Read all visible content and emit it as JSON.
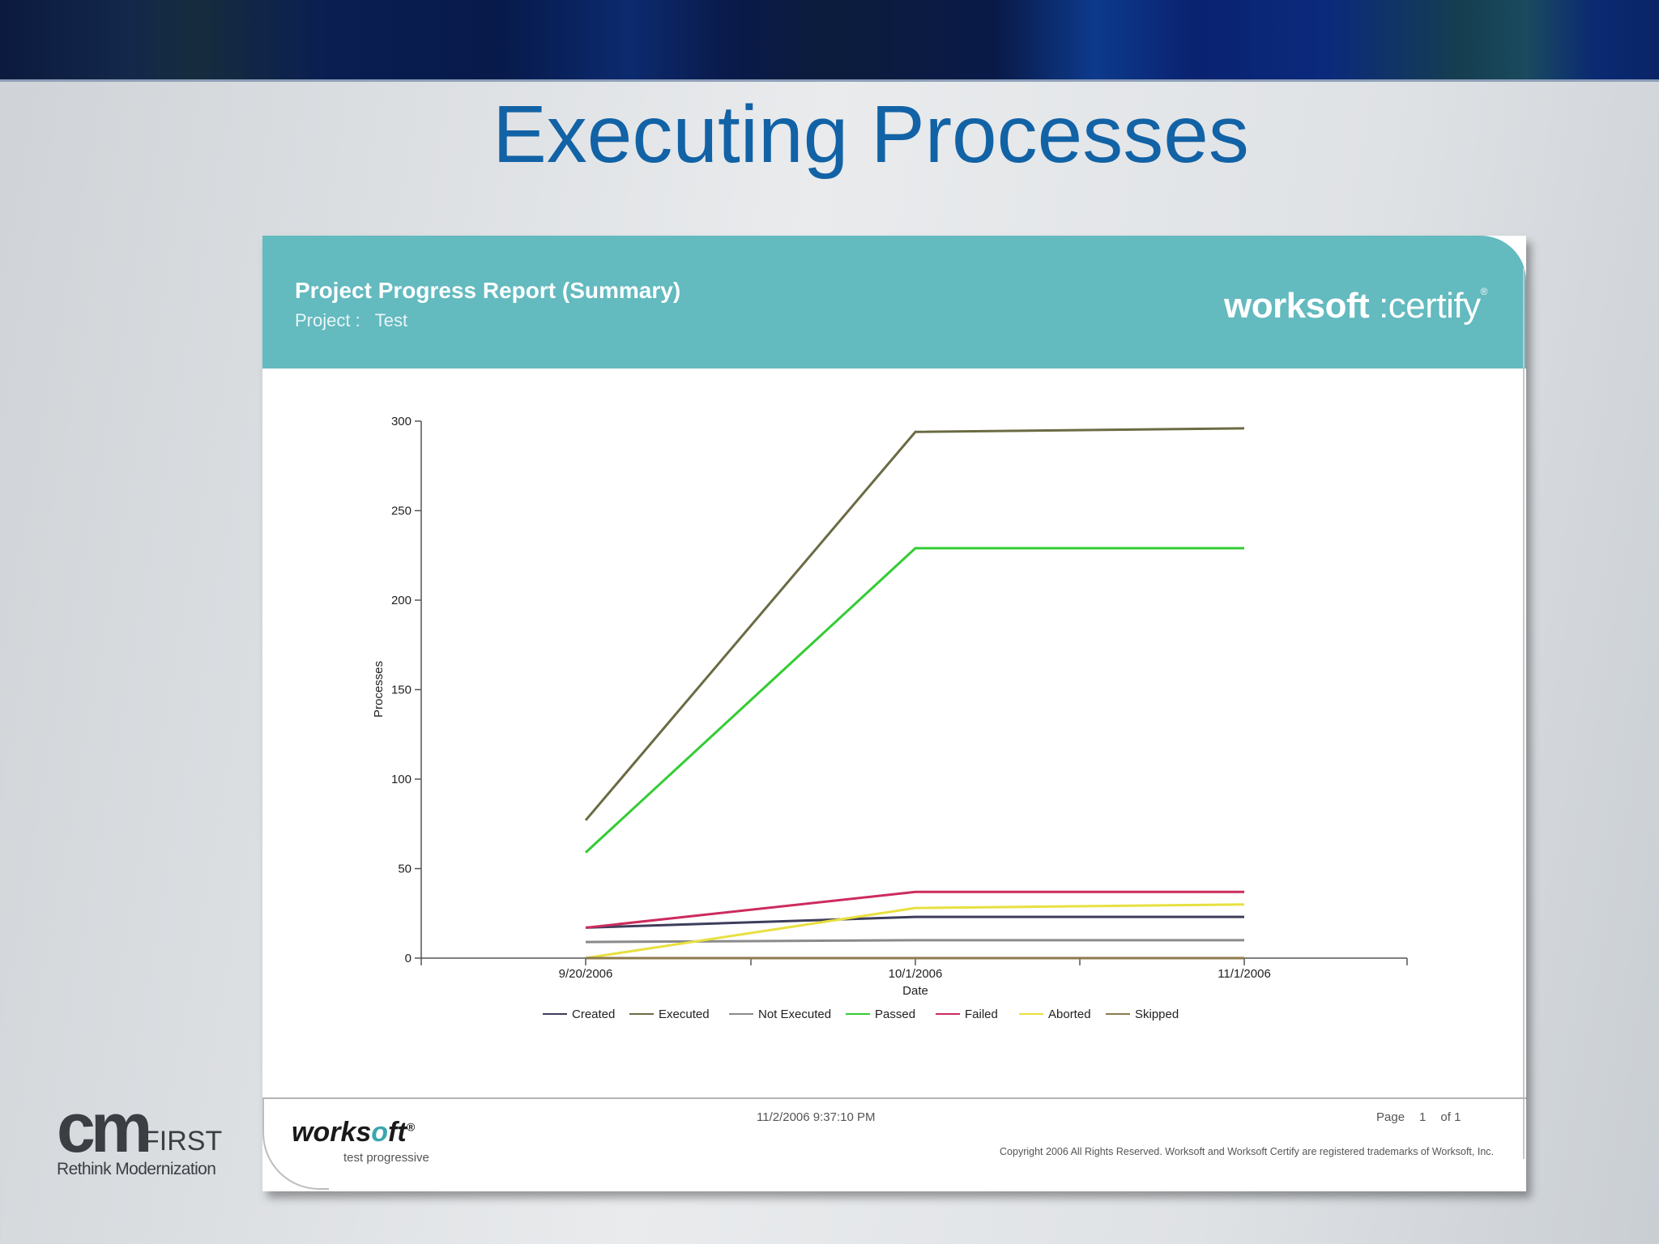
{
  "slide": {
    "title": "Executing Processes"
  },
  "report": {
    "title": "Project Progress Report (Summary)",
    "project_label": "Project :",
    "project_value": "Test",
    "brand_bold": "worksoft",
    "brand_light": ":certify",
    "brand_mark": "®"
  },
  "footer": {
    "logo_prefix": "works",
    "logo_o": "o",
    "logo_suffix": "ft",
    "logo_mark": "®",
    "tagline": "test progressive",
    "datetime": "11/2/2006 9:37:10 PM",
    "page_label": "Page",
    "page_num": "1",
    "page_of": "of 1",
    "copyright": "Copyright 2006    All Rights Reserved. Worksoft and Worksoft Certify are registered trademarks of Worksoft, Inc."
  },
  "corner_logo": {
    "big": "cm",
    "first": "FIRST",
    "tagline": "Rethink Modernization"
  },
  "chart_data": {
    "type": "line",
    "xlabel": "Date",
    "ylabel": "Processes",
    "ylim": [
      0,
      300
    ],
    "yticks": [
      0,
      50,
      100,
      150,
      200,
      250,
      300
    ],
    "x": [
      "9/20/2006",
      "10/1/2006",
      "11/1/2006"
    ],
    "grid": false,
    "legend_position": "bottom",
    "series": [
      {
        "name": "Created",
        "color": "#3d3d5c",
        "values": [
          17,
          23,
          23
        ]
      },
      {
        "name": "Executed",
        "color": "#6b6b44",
        "values": [
          77,
          294,
          296
        ]
      },
      {
        "name": "Not Executed",
        "color": "#8a8a8a",
        "values": [
          9,
          10,
          10
        ]
      },
      {
        "name": "Passed",
        "color": "#33cc33",
        "values": [
          59,
          229,
          229
        ]
      },
      {
        "name": "Failed",
        "color": "#cc2b5e",
        "values": [
          17,
          37,
          37
        ]
      },
      {
        "name": "Aborted",
        "color": "#e8e040",
        "values": [
          0,
          28,
          30
        ]
      },
      {
        "name": "Skipped",
        "color": "#8c7a4a",
        "values": [
          0,
          0,
          0
        ]
      }
    ]
  }
}
